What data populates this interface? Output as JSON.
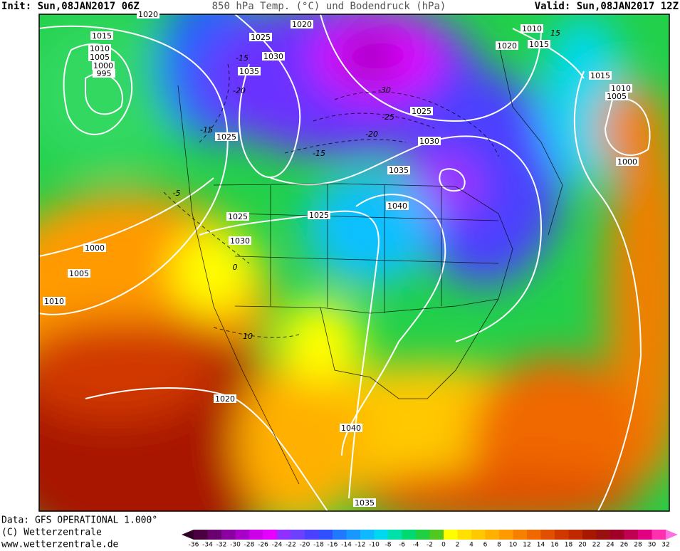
{
  "header": {
    "init": "Init: Sun,08JAN2017 06Z",
    "title": "850 hPa Temp. (°C) und Bodendruck (hPa)",
    "valid": "Valid: Sun,08JAN2017 12Z"
  },
  "footer": {
    "data": "Data: GFS OPERATIONAL 1.000°",
    "copyright": "(C) Wetterzentrale",
    "url": "www.wetterzentrale.de"
  },
  "isobar_labels": [
    "1020",
    "1020",
    "1025",
    "1030",
    "1035",
    "1015",
    "1010",
    "1005",
    "1000",
    "995",
    "1025",
    "1025",
    "1025",
    "1030",
    "1000",
    "1005",
    "1010",
    "1020",
    "1040",
    "1035",
    "1025",
    "1030",
    "1035",
    "1040",
    "1020",
    "1010",
    "1015",
    "1015",
    "1010",
    "1005",
    "1000"
  ],
  "temp_labels": [
    "-30",
    "-25",
    "-20",
    "-15",
    "-15",
    "-20",
    "-15",
    "-5",
    "10",
    "0",
    "15"
  ],
  "colorbar": {
    "ticks": [
      -36,
      -34,
      -32,
      -30,
      -28,
      -26,
      -24,
      -22,
      -20,
      -18,
      -16,
      -14,
      -12,
      -10,
      -8,
      -6,
      -4,
      -2,
      0,
      2,
      4,
      6,
      8,
      10,
      12,
      14,
      16,
      18,
      20,
      22,
      24,
      26,
      28,
      30,
      32
    ],
    "colors": [
      "#4b0040",
      "#6a0070",
      "#8a00a0",
      "#a800c8",
      "#cc00e8",
      "#e600ff",
      "#9030ff",
      "#6c40ff",
      "#4c40ff",
      "#3050ff",
      "#2078ff",
      "#1898ff",
      "#10b8ff",
      "#00d8f0",
      "#00e0a8",
      "#00d870",
      "#20d040",
      "#50c820",
      "#ffff00",
      "#ffe000",
      "#ffc800",
      "#ffb000",
      "#ff9a00",
      "#f88000",
      "#f06800",
      "#e05000",
      "#d03800",
      "#c02800",
      "#a81800",
      "#981010",
      "#a00028",
      "#c00050",
      "#e00080",
      "#ff30b0"
    ],
    "under_color": "#300028",
    "over_color": "#ff70e0"
  }
}
